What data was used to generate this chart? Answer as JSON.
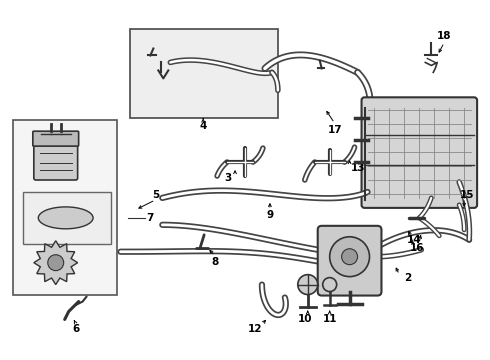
{
  "bg_color": "#ffffff",
  "line_color": "#333333",
  "box_color": "#e8e8e8",
  "fig_width": 4.9,
  "fig_height": 3.6,
  "dpi": 100
}
